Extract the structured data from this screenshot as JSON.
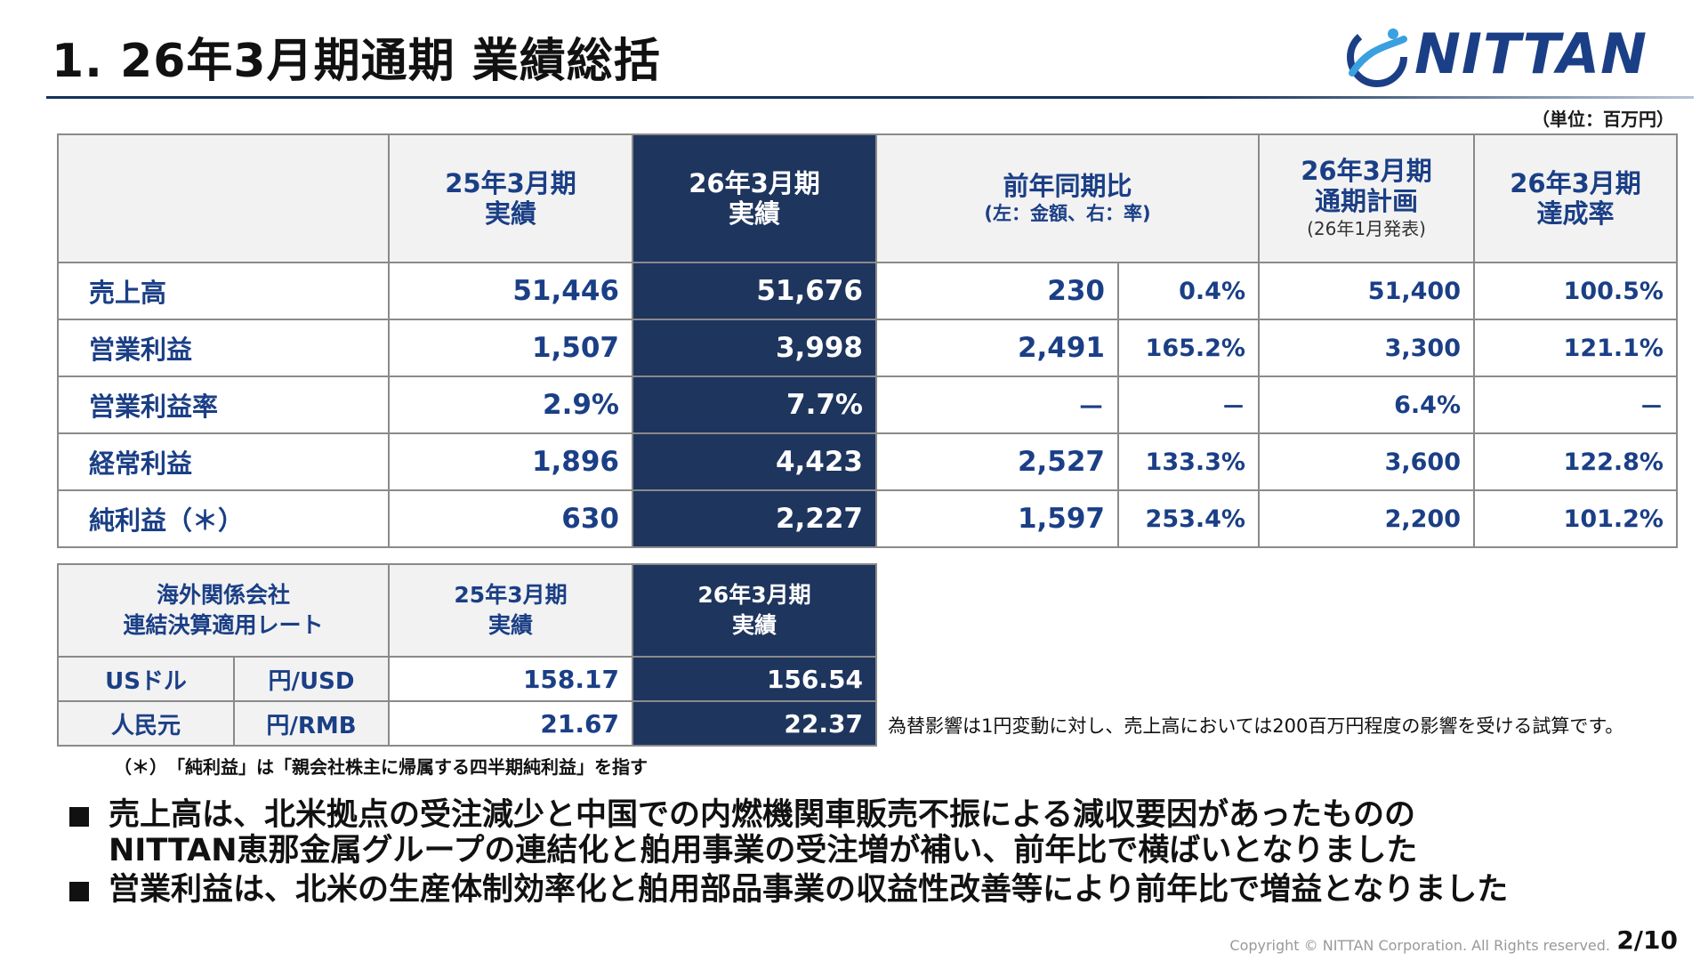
{
  "slide": {
    "title": "1. 26年3月期通期 業績総括",
    "logo_text": "NITTAN",
    "unit": "（単位：百万円）",
    "page_number": "2/10",
    "copyright": "Copyright © NITTAN Corporation. All Rights reserved."
  },
  "results_table": {
    "headers": {
      "fy25_line1": "25年3月期",
      "fy25_line2": "実績",
      "fy26_line1": "26年3月期",
      "fy26_line2": "実績",
      "yoy_line1": "前年同期比",
      "yoy_line2": "(左：金額、右：率)",
      "plan_line1": "26年3月期",
      "plan_line2": "通期計画",
      "plan_line3": "(26年1月発表)",
      "ach_line1": "26年3月期",
      "ach_line2": "達成率"
    },
    "rows": [
      {
        "label": "売上高",
        "fy25": "51,446",
        "fy26": "51,676",
        "diff": "230",
        "rate": "0.4%",
        "plan": "51,400",
        "achievement": "100.5%"
      },
      {
        "label": "営業利益",
        "fy25": "1,507",
        "fy26": "3,998",
        "diff": "2,491",
        "rate": "165.2%",
        "plan": "3,300",
        "achievement": "121.1%"
      },
      {
        "label": "営業利益率",
        "fy25": "2.9%",
        "fy26": "7.7%",
        "diff": "－",
        "rate": "－",
        "plan": "6.4%",
        "achievement": "－"
      },
      {
        "label": "経常利益",
        "fy25": "1,896",
        "fy26": "4,423",
        "diff": "2,527",
        "rate": "133.3%",
        "plan": "3,600",
        "achievement": "122.8%"
      },
      {
        "label": "純利益（＊）",
        "fy25": "630",
        "fy26": "2,227",
        "diff": "1,597",
        "rate": "253.4%",
        "plan": "2,200",
        "achievement": "101.2%"
      }
    ]
  },
  "fx_table": {
    "header_line1": "海外関係会社",
    "header_line2": "連結決算適用レート",
    "fy25_line1": "25年3月期",
    "fy25_line2": "実績",
    "fy26_line1": "26年3月期",
    "fy26_line2": "実績",
    "rows": [
      {
        "currency": "USドル",
        "pair": "円/USD",
        "fy25": "158.17",
        "fy26": "156.54"
      },
      {
        "currency": "人民元",
        "pair": "円/RMB",
        "fy25": "21.67",
        "fy26": "22.37"
      }
    ]
  },
  "fx_note": "為替影響は1円変動に対し、売上高においては200百万円程度の影響を受ける試算です。",
  "footnote": "（＊）　「純利益」は「親会社株主に帰属する四半期純利益」を指す",
  "bullets": [
    {
      "line1": "売上高は、北米拠点の受注減少と中国での内燃機関車販売不振による減収要因があったものの",
      "line2": "NITTAN恵那金属グループの連結化と舶用事業の受注増が補い、前年比で横ばいとなりました"
    },
    {
      "line1": "営業利益は、北米の生産体制効率化と舶用部品事業の収益性改善等により前年比で増益となりました",
      "line2": ""
    }
  ],
  "colors": {
    "navy": "#1e355e",
    "accent_text": "#1b3f86",
    "header_bg": "#f2f2f2",
    "border": "#8a8a8a"
  }
}
